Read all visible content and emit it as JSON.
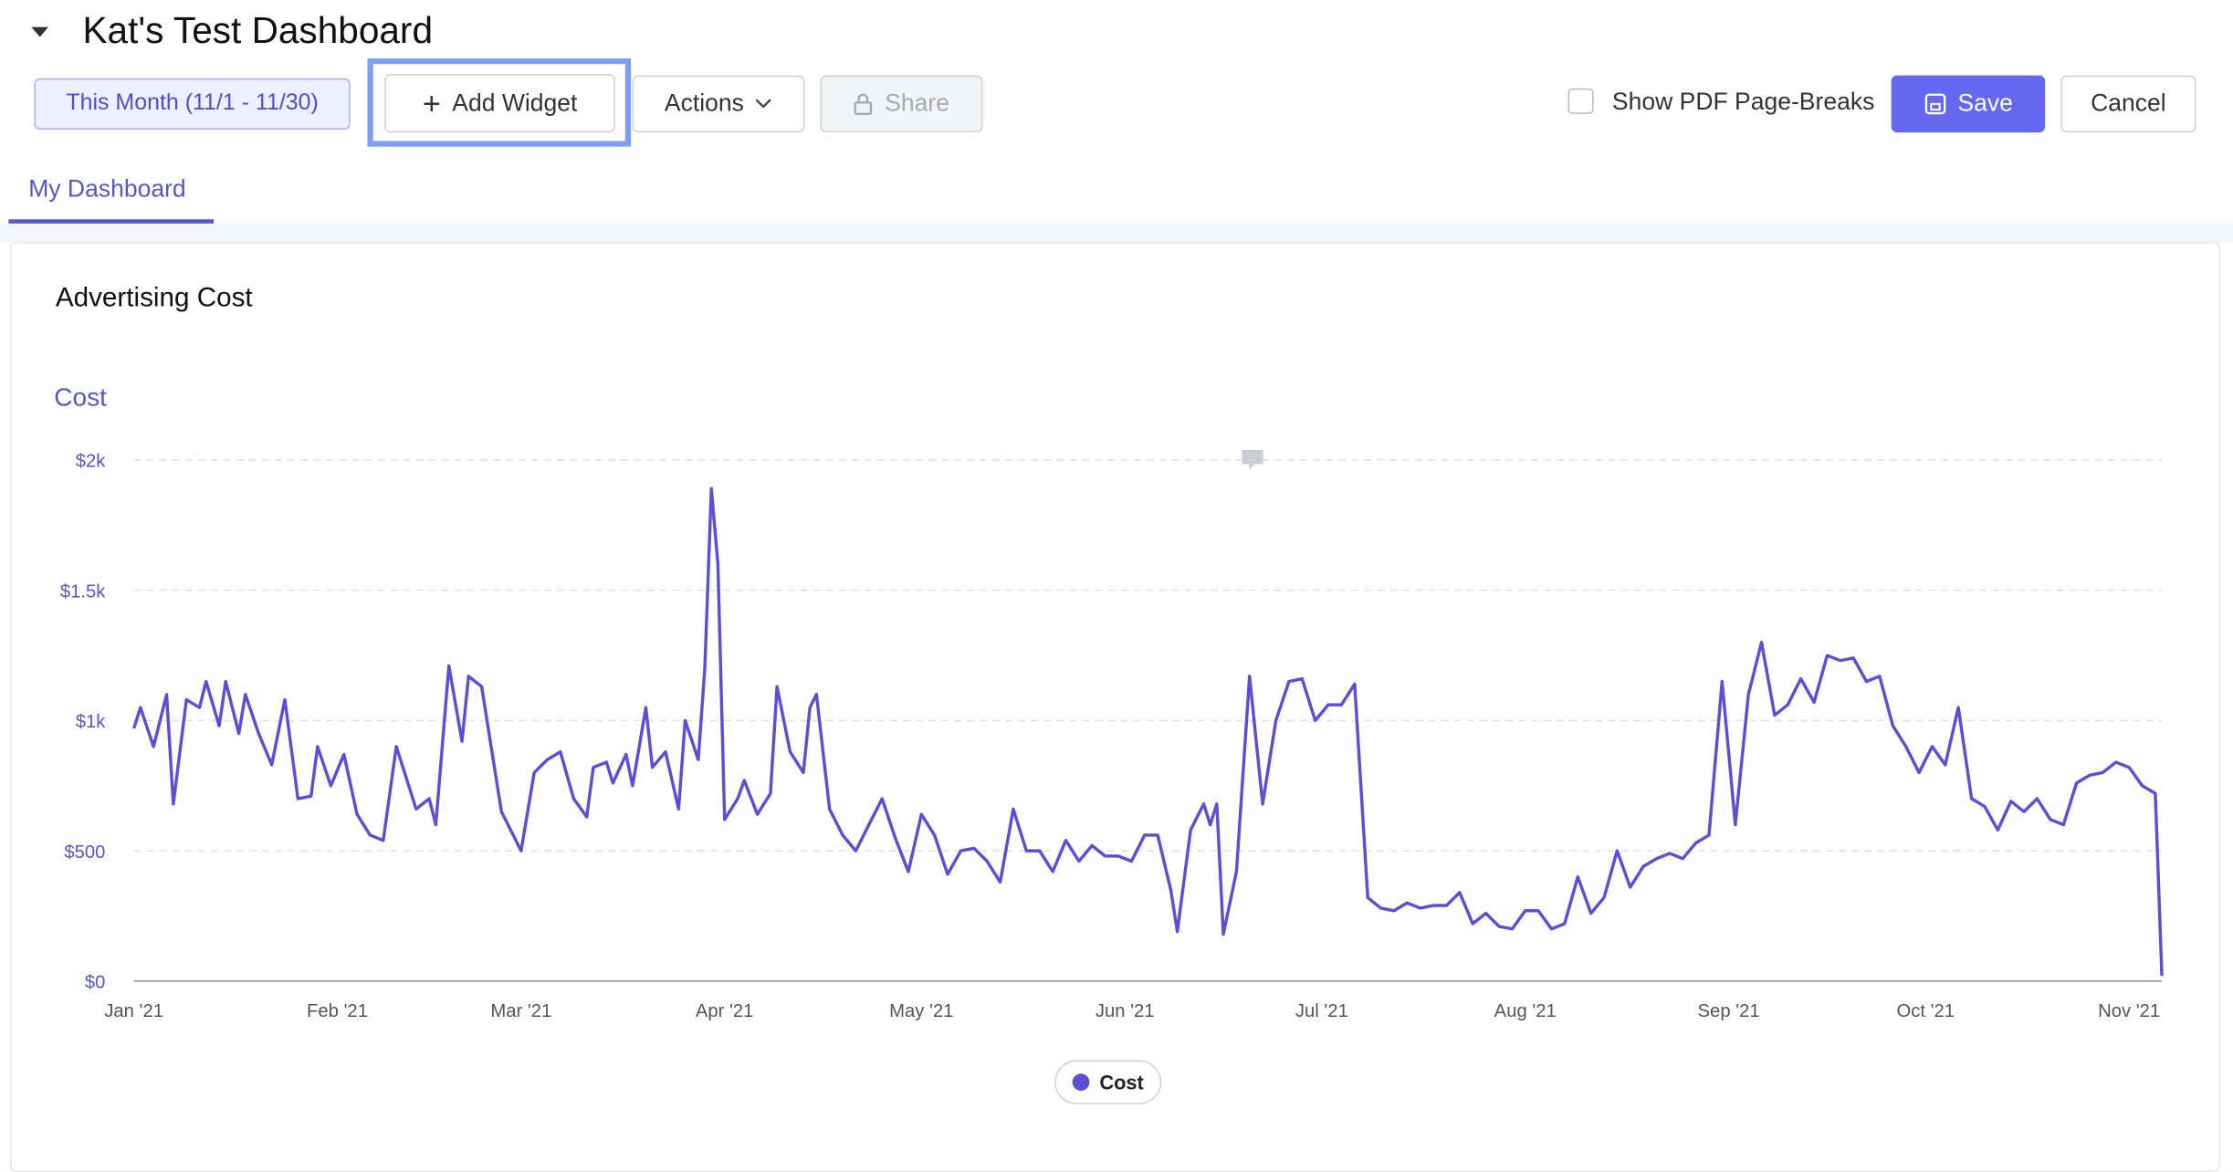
{
  "header": {
    "title": "Kat's Test Dashboard"
  },
  "toolbar": {
    "date_range": "This Month (11/1 - 11/30)",
    "add_widget": "Add Widget",
    "actions": "Actions",
    "share": "Share",
    "pdf_breaks": "Show PDF Page-Breaks",
    "save": "Save",
    "cancel": "Cancel"
  },
  "tabs": [
    "My Dashboard"
  ],
  "widget": {
    "title": "Advertising Cost"
  },
  "chart_data": {
    "type": "line",
    "y_axis_title": "Cost",
    "x": [
      0,
      1,
      3,
      5,
      6,
      8,
      10,
      11,
      13,
      14,
      16,
      17,
      19,
      21,
      23,
      25,
      27,
      28,
      30,
      32,
      34,
      36,
      38,
      40,
      43,
      45,
      46,
      48,
      50,
      51,
      53,
      56,
      59,
      61,
      63,
      65,
      67,
      69,
      70,
      72,
      73,
      75,
      76,
      78,
      79,
      81,
      83,
      84,
      86,
      87,
      88,
      89,
      90,
      92,
      93,
      95,
      97,
      98,
      100,
      102,
      103,
      104,
      106,
      108,
      110,
      112,
      114,
      116,
      118,
      120,
      122,
      124,
      126,
      128,
      130,
      132,
      134,
      136,
      138,
      140,
      142,
      144,
      146,
      148,
      150,
      152,
      154,
      156,
      158,
      159,
      161,
      163,
      164,
      165,
      166,
      168,
      170,
      172,
      174,
      176,
      178,
      180,
      182,
      184,
      186,
      188,
      190,
      192,
      194,
      196,
      198,
      200,
      202,
      204,
      206,
      208,
      210,
      212,
      214,
      216,
      218,
      220,
      222,
      224,
      226,
      228,
      230,
      232,
      234,
      236,
      238,
      240,
      242,
      244,
      246,
      248,
      250,
      252,
      254,
      256,
      258,
      260,
      262,
      264,
      266,
      268,
      270,
      272,
      274,
      276,
      278,
      280,
      282,
      284,
      286,
      288,
      290,
      292,
      294,
      296,
      298,
      300,
      302,
      304,
      306,
      308,
      309
    ],
    "series": [
      {
        "name": "Cost",
        "color": "#5b4fd9",
        "values": [
          970,
          1050,
          900,
          1100,
          680,
          1080,
          1050,
          1150,
          980,
          1150,
          950,
          1100,
          950,
          830,
          1080,
          700,
          710,
          900,
          750,
          870,
          640,
          560,
          540,
          900,
          660,
          700,
          600,
          1210,
          920,
          1170,
          1130,
          650,
          500,
          800,
          850,
          880,
          700,
          630,
          820,
          840,
          760,
          870,
          750,
          1050,
          820,
          880,
          660,
          1000,
          850,
          1200,
          1890,
          1600,
          620,
          700,
          770,
          640,
          720,
          1130,
          880,
          800,
          1050,
          1100,
          660,
          560,
          500,
          600,
          700,
          550,
          420,
          640,
          560,
          410,
          500,
          510,
          460,
          380,
          660,
          500,
          500,
          420,
          540,
          460,
          520,
          480,
          480,
          460,
          560,
          560,
          350,
          190,
          580,
          680,
          600,
          680,
          180,
          420,
          1170,
          680,
          1000,
          1150,
          1160,
          1000,
          1060,
          1060,
          1140,
          320,
          280,
          270,
          300,
          280,
          290,
          290,
          340,
          220,
          260,
          210,
          200,
          270,
          270,
          200,
          220,
          400,
          260,
          320,
          500,
          360,
          440,
          470,
          490,
          470,
          530,
          560,
          1150,
          600,
          1100,
          1300,
          1020,
          1060,
          1160,
          1070,
          1250,
          1230,
          1240,
          1150,
          1170,
          980,
          900,
          800,
          900,
          830,
          1050,
          700,
          670,
          580,
          690,
          650,
          700,
          620,
          600,
          760,
          790,
          800,
          840,
          820,
          750,
          720,
          20
        ]
      }
    ],
    "xlim": [
      0,
      309
    ],
    "xticks": [
      {
        "value": 0,
        "label": "Jan '21"
      },
      {
        "value": 31,
        "label": "Feb '21"
      },
      {
        "value": 59,
        "label": "Mar '21"
      },
      {
        "value": 90,
        "label": "Apr '21"
      },
      {
        "value": 120,
        "label": "May '21"
      },
      {
        "value": 151,
        "label": "Jun '21"
      },
      {
        "value": 181,
        "label": "Jul '21"
      },
      {
        "value": 212,
        "label": "Aug '21"
      },
      {
        "value": 243,
        "label": "Sep '21"
      },
      {
        "value": 273,
        "label": "Oct '21"
      },
      {
        "value": 304,
        "label": "Nov '21"
      }
    ],
    "ylim": [
      0,
      2000
    ],
    "yticks": [
      {
        "value": 0,
        "label": "$0"
      },
      {
        "value": 500,
        "label": "$500"
      },
      {
        "value": 1000,
        "label": "$1k"
      },
      {
        "value": 1500,
        "label": "$1.5k"
      },
      {
        "value": 2000,
        "label": "$2k"
      }
    ],
    "grid": true
  }
}
